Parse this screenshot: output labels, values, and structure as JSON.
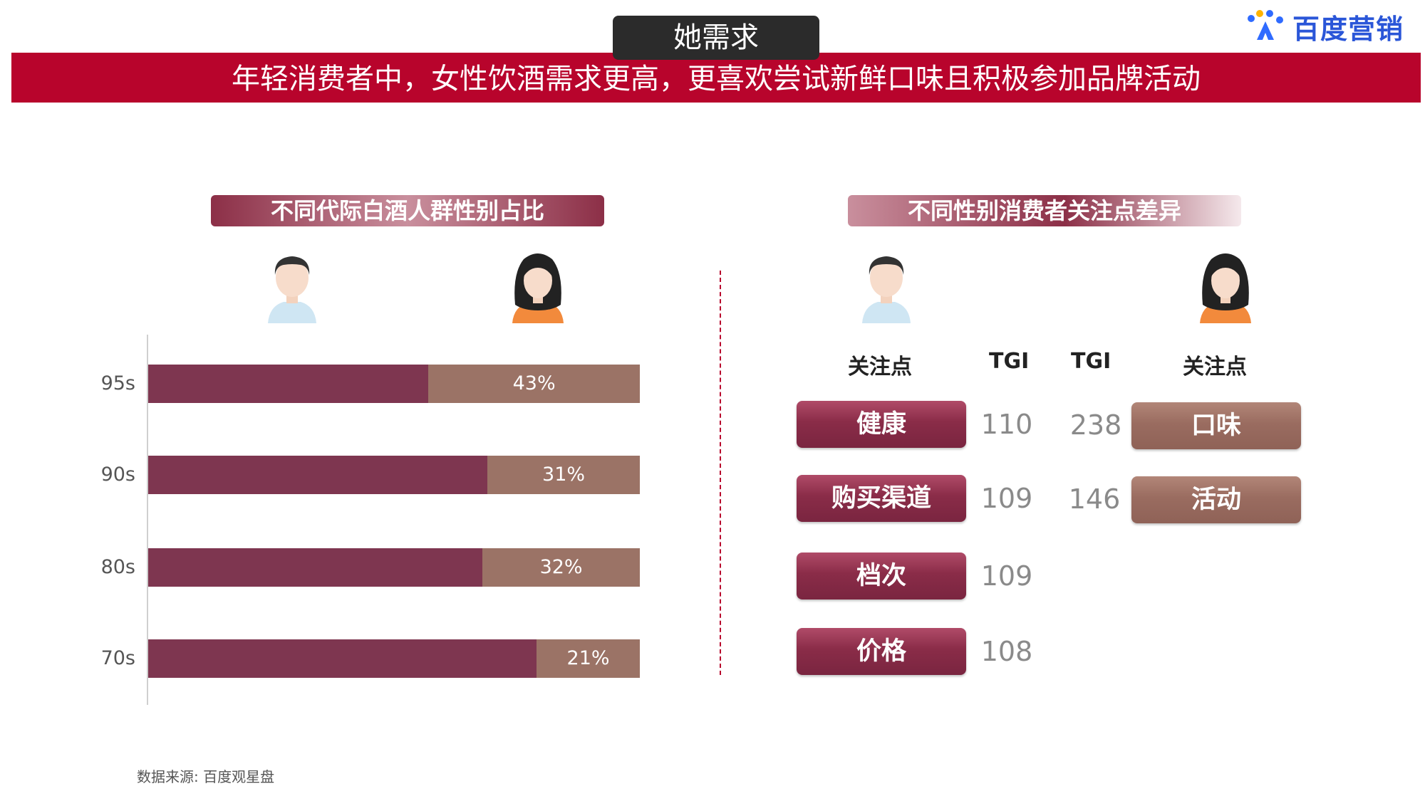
{
  "header": {
    "tab_title": "她需求",
    "banner": "年轻消费者中，女性饮酒需求更高，更喜欢尝试新鲜口味且积极参加品牌活动",
    "logo_text": "百度营销"
  },
  "left_section": {
    "title": "不同代际白酒人群性别占比"
  },
  "right_section": {
    "title": "不同性别消费者关注点差异",
    "male": {
      "col_focus": "关注点",
      "col_tgi": "TGI",
      "items": [
        {
          "label": "健康",
          "tgi": "110"
        },
        {
          "label": "购买渠道",
          "tgi": "109"
        },
        {
          "label": "档次",
          "tgi": "109"
        },
        {
          "label": "价格",
          "tgi": "108"
        }
      ]
    },
    "female": {
      "col_focus": "关注点",
      "col_tgi": "TGI",
      "items": [
        {
          "label": "口味",
          "tgi": "238"
        },
        {
          "label": "活动",
          "tgi": "146"
        }
      ]
    }
  },
  "chart_data": {
    "type": "bar",
    "orientation": "horizontal",
    "stacked": true,
    "categories": [
      "95s",
      "90s",
      "80s",
      "70s"
    ],
    "series": [
      {
        "values": [
          57,
          69,
          68,
          79
        ],
        "color": "#7e3650"
      },
      {
        "values": [
          43,
          31,
          32,
          21
        ],
        "color": "#9b7366",
        "labels": [
          "43%",
          "31%",
          "32%",
          "21%"
        ]
      }
    ],
    "xlim": [
      0,
      100
    ]
  },
  "colors": {
    "banner_red": "#b8042c",
    "male_bar": "#7e3650",
    "female_bar": "#9b7366",
    "logo_blue": "#2a56d8"
  },
  "footer": {
    "source": "数据来源: 百度观星盘"
  }
}
